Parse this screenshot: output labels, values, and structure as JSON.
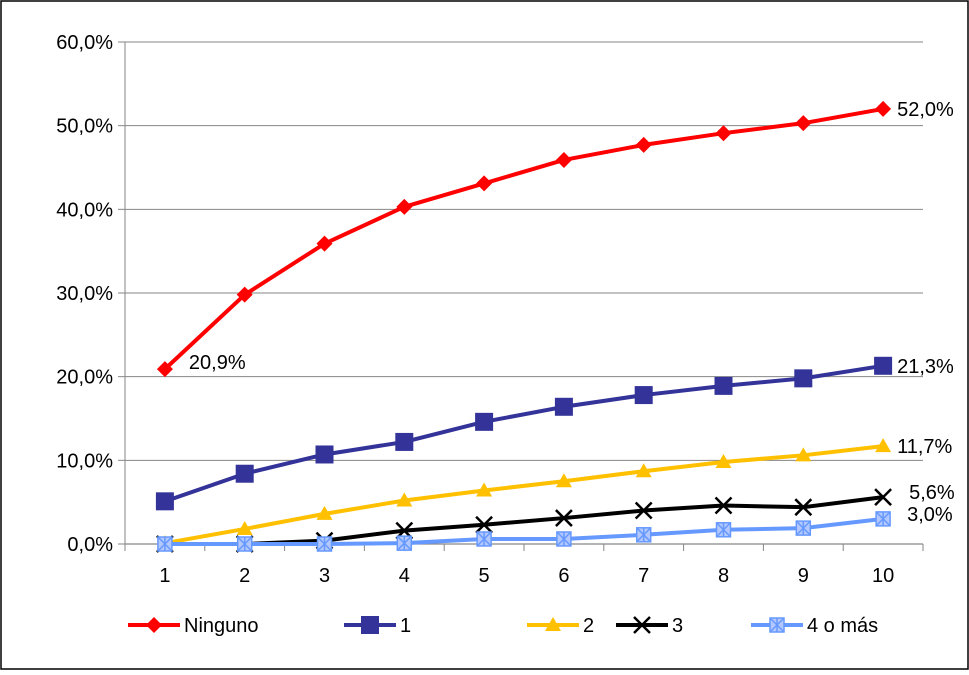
{
  "chart_data": {
    "type": "line",
    "x": [
      "1",
      "2",
      "3",
      "4",
      "5",
      "6",
      "7",
      "8",
      "9",
      "10"
    ],
    "ylim": [
      0,
      60
    ],
    "yticks": [
      "0,0%",
      "10,0%",
      "20,0%",
      "30,0%",
      "40,0%",
      "50,0%",
      "60,0%"
    ],
    "grid": true,
    "legend_position": "bottom",
    "series": [
      {
        "name": "Ninguno",
        "color": "#ff0000",
        "marker": "diamond",
        "values": [
          20.9,
          29.8,
          35.9,
          40.3,
          43.1,
          45.9,
          47.7,
          49.1,
          50.3,
          52.0
        ],
        "labels": [
          "20,9%",
          "",
          "",
          "",
          "",
          "",
          "",
          "",
          "",
          "52,0%"
        ]
      },
      {
        "name": "1",
        "color": "#333399",
        "marker": "square",
        "values": [
          5.1,
          8.4,
          10.7,
          12.2,
          14.6,
          16.4,
          17.8,
          18.9,
          19.8,
          21.3
        ],
        "labels": [
          "",
          "",
          "",
          "",
          "",
          "",
          "",
          "",
          "",
          "21,3%"
        ]
      },
      {
        "name": "2",
        "color": "#ffc000",
        "marker": "triangle",
        "values": [
          0.1,
          1.8,
          3.6,
          5.2,
          6.4,
          7.5,
          8.7,
          9.8,
          10.6,
          11.7
        ],
        "labels": [
          "",
          "",
          "",
          "",
          "",
          "",
          "",
          "",
          "",
          "11,7%"
        ]
      },
      {
        "name": "3",
        "color": "#000000",
        "marker": "x",
        "values": [
          0.0,
          0.0,
          0.4,
          1.6,
          2.3,
          3.1,
          4.0,
          4.6,
          4.4,
          5.6
        ],
        "labels": [
          "",
          "",
          "",
          "",
          "",
          "",
          "",
          "",
          "",
          "5,6%"
        ]
      },
      {
        "name": "4 o más",
        "color": "#6699ff",
        "marker": "star-square",
        "values": [
          0.0,
          0.0,
          0.0,
          0.1,
          0.6,
          0.6,
          1.1,
          1.7,
          1.9,
          3.0
        ],
        "labels": [
          "",
          "",
          "",
          "",
          "",
          "",
          "",
          "",
          "",
          "3,0%"
        ]
      }
    ]
  }
}
